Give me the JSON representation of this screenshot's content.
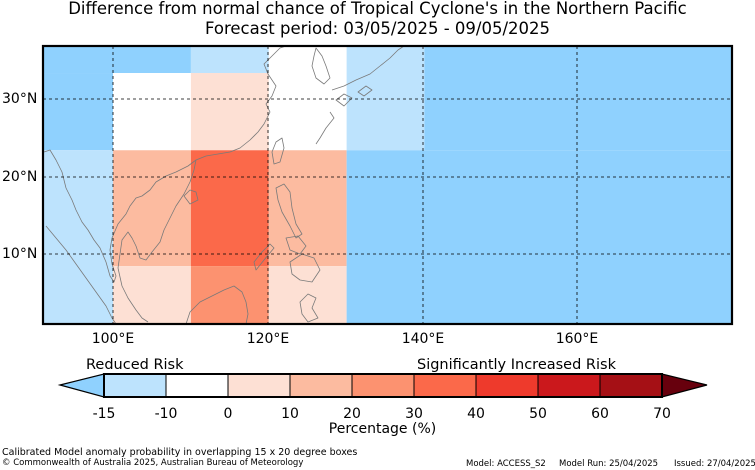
{
  "title": {
    "line1": "Difference from normal chance of Tropical Cyclone's in the Northern Pacific",
    "line2": "Forecast period: 03/05/2025 - 09/05/2025"
  },
  "map": {
    "lat_labels": [
      "30°N",
      "20°N",
      "10°N"
    ],
    "lon_labels": [
      "100°E",
      "120°E",
      "140°E",
      "160°E"
    ],
    "grid_cells": [
      {
        "lat": [
          32.5,
          37.5
        ],
        "lon": [
          90,
          110
        ],
        "bin": 0
      },
      {
        "lat": [
          22.5,
          32.5
        ],
        "lon": [
          90,
          100
        ],
        "bin": 0
      },
      {
        "lat": [
          32.5,
          37.5
        ],
        "lon": [
          110,
          120
        ],
        "bin": 1
      },
      {
        "lat": [
          22.5,
          32.5
        ],
        "lon": [
          100,
          110
        ],
        "bin": 2
      },
      {
        "lat": [
          32.5,
          37.5
        ],
        "lon": [
          120,
          130
        ],
        "bin": 2
      },
      {
        "lat": [
          22.5,
          32.5
        ],
        "lon": [
          110,
          120
        ],
        "bin": 3
      },
      {
        "lat": [
          22.5,
          32.5
        ],
        "lon": [
          120,
          130
        ],
        "bin": 2
      },
      {
        "lat": [
          22.5,
          37.5
        ],
        "lon": [
          130,
          140
        ],
        "bin": 1
      },
      {
        "lat": [
          22.5,
          37.5
        ],
        "lon": [
          140,
          180
        ],
        "bin": 0
      },
      {
        "lat": [
          0,
          22.5
        ],
        "lon": [
          90,
          100
        ],
        "bin": 1
      },
      {
        "lat": [
          7.5,
          22.5
        ],
        "lon": [
          100,
          110
        ],
        "bin": 4
      },
      {
        "lat": [
          7.5,
          22.5
        ],
        "lon": [
          110,
          120
        ],
        "bin": 6
      },
      {
        "lat": [
          7.5,
          22.5
        ],
        "lon": [
          120,
          130
        ],
        "bin": 4
      },
      {
        "lat": [
          0,
          7.5
        ],
        "lon": [
          100,
          110
        ],
        "bin": 3
      },
      {
        "lat": [
          0,
          7.5
        ],
        "lon": [
          110,
          120
        ],
        "bin": 5
      },
      {
        "lat": [
          0,
          7.5
        ],
        "lon": [
          120,
          130
        ],
        "bin": 3
      },
      {
        "lat": [
          0,
          22.5
        ],
        "lon": [
          130,
          180
        ],
        "bin": 0
      }
    ]
  },
  "legend": {
    "reduced_label": "Reduced Risk",
    "increased_label": "Significantly Increased Risk",
    "ticks": [
      "-15",
      "-10",
      "0",
      "10",
      "20",
      "30",
      "40",
      "50",
      "60",
      "70"
    ],
    "colors": {
      "under": "#8fd1fe",
      "bins": [
        "#bde3fd",
        "#ffffff",
        "#fde0d4",
        "#fcbba0",
        "#fc9270",
        "#fb694a",
        "#ee3a2c",
        "#cb181c",
        "#a51015"
      ],
      "over": "#67000d"
    },
    "axis_label": "Percentage (%)"
  },
  "footer": {
    "left_line1": "Calibrated Model anomaly probability in overlapping 15 x 20 degree boxes",
    "left_line2": "© Commonwealth of Australia 2025, Australian Bureau of Meteorology",
    "model": "Model: ACCESS_S2",
    "model_run": "Model Run: 25/04/2025",
    "issued": "Issued: 27/04/2025"
  }
}
